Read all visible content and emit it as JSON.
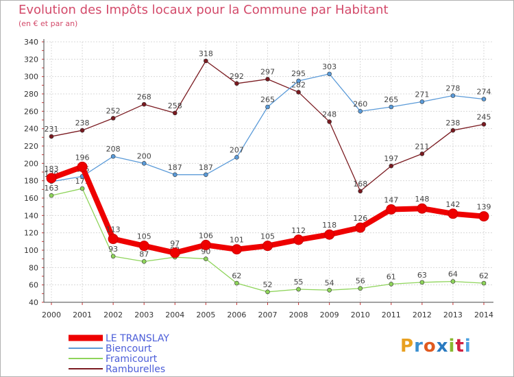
{
  "title": "Evolution des Impôts locaux pour la Commune par Habitant",
  "subtitle": "(en € et par an)",
  "logo": {
    "text": "Proxiti",
    "colors": [
      "#e8a020",
      "#3a8fd0",
      "#e05a20",
      "#2a7ac0",
      "#88b830",
      "#d02040",
      "#4aa0e0"
    ]
  },
  "chart_data": {
    "type": "line",
    "x": [
      "2000",
      "2001",
      "2002",
      "2003",
      "2004",
      "2005",
      "2006",
      "2007",
      "2008",
      "2009",
      "2010",
      "2011",
      "2012",
      "2013",
      "2014"
    ],
    "ylim": [
      40,
      340
    ],
    "yticks": [
      40,
      60,
      80,
      100,
      120,
      140,
      160,
      180,
      200,
      220,
      240,
      260,
      280,
      300,
      320,
      340
    ],
    "grid": true,
    "legend": "bottom-left",
    "series": [
      {
        "name": "Ramburelles",
        "color": "#7a1a20",
        "values": [
          231,
          238,
          252,
          268,
          258,
          318,
          292,
          297,
          282,
          248,
          168,
          197,
          211,
          238,
          245
        ]
      },
      {
        "name": "Biencourt",
        "color": "#5a9ad8",
        "values": [
          179,
          185,
          208,
          200,
          187,
          187,
          207,
          265,
          295,
          303,
          260,
          265,
          271,
          278,
          274
        ]
      },
      {
        "name": "Framicourt",
        "color": "#8ed45a",
        "values": [
          163,
          171,
          93,
          87,
          92,
          90,
          62,
          52,
          55,
          54,
          56,
          61,
          63,
          64,
          62
        ]
      },
      {
        "name": "LE TRANSLAY",
        "color": "#ee0000",
        "values": [
          183,
          196,
          113,
          105,
          97,
          106,
          101,
          105,
          112,
          118,
          126,
          147,
          148,
          142,
          139
        ]
      }
    ],
    "legend_order": [
      "LE TRANSLAY",
      "Biencourt",
      "Framicourt",
      "Ramburelles"
    ]
  }
}
